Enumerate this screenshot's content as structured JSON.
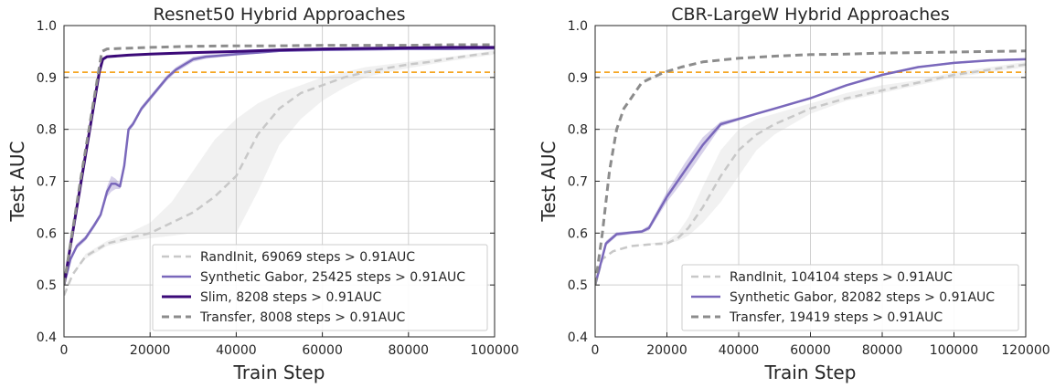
{
  "chart_data": [
    {
      "type": "line",
      "title": "Resnet50 Hybrid Approaches",
      "xlabel": "Train Step",
      "ylabel": "Test AUC",
      "xlim": [
        0,
        100000
      ],
      "ylim": [
        0.4,
        1.0
      ],
      "xticks": [
        0,
        20000,
        40000,
        60000,
        80000,
        100000
      ],
      "yticks": [
        0.4,
        0.5,
        0.6,
        0.7,
        0.8,
        0.9,
        1.0
      ],
      "grid": true,
      "legend_position": "lower-right",
      "threshold": {
        "value": 0.91,
        "color": "#f5a623"
      },
      "series": [
        {
          "name": "RandInit, 69069 steps > 0.91AUC",
          "color": "#c8c8c8",
          "dash": "dashed",
          "width": 2.5,
          "x": [
            0,
            2000,
            5000,
            10000,
            15000,
            20000,
            25000,
            30000,
            35000,
            40000,
            45000,
            50000,
            55000,
            60000,
            65000,
            70000,
            75000,
            80000,
            85000,
            90000,
            95000,
            100000
          ],
          "y": [
            0.48,
            0.52,
            0.555,
            0.58,
            0.59,
            0.6,
            0.62,
            0.64,
            0.67,
            0.71,
            0.79,
            0.84,
            0.87,
            0.885,
            0.9,
            0.91,
            0.918,
            0.925,
            0.93,
            0.937,
            0.943,
            0.948
          ],
          "band_low": [
            0.48,
            0.52,
            0.55,
            0.575,
            0.585,
            0.59,
            0.595,
            0.6,
            0.6,
            0.6,
            0.68,
            0.77,
            0.82,
            0.855,
            0.88,
            0.9,
            0.91,
            0.918,
            0.925,
            0.932,
            0.938,
            0.944
          ],
          "band_high": [
            0.48,
            0.52,
            0.56,
            0.585,
            0.6,
            0.62,
            0.66,
            0.72,
            0.78,
            0.82,
            0.85,
            0.87,
            0.885,
            0.9,
            0.91,
            0.92,
            0.925,
            0.93,
            0.935,
            0.94,
            0.946,
            0.952
          ]
        },
        {
          "name": "Synthetic Gabor, 25425 steps > 0.91AUC",
          "color": "#7a68bb",
          "dash": "solid",
          "width": 2.5,
          "x": [
            0,
            1500,
            3000,
            5000,
            7000,
            8500,
            10000,
            11000,
            12000,
            13000,
            14000,
            15000,
            16000,
            18000,
            20000,
            22000,
            24000,
            26000,
            28000,
            30000,
            33000,
            36000,
            40000,
            45000,
            50000,
            60000,
            70000,
            80000,
            90000,
            100000
          ],
          "y": [
            0.5,
            0.55,
            0.575,
            0.59,
            0.615,
            0.635,
            0.68,
            0.695,
            0.695,
            0.69,
            0.73,
            0.8,
            0.81,
            0.84,
            0.86,
            0.88,
            0.9,
            0.915,
            0.925,
            0.935,
            0.94,
            0.942,
            0.945,
            0.948,
            0.951,
            0.953,
            0.954,
            0.955,
            0.955,
            0.956
          ],
          "band_low": [
            0.5,
            0.545,
            0.57,
            0.585,
            0.61,
            0.63,
            0.67,
            0.68,
            0.685,
            0.685,
            0.725,
            0.795,
            0.805,
            0.835,
            0.855,
            0.875,
            0.895,
            0.91,
            0.92,
            0.93,
            0.936,
            0.939,
            0.942,
            0.946,
            0.949,
            0.951,
            0.952,
            0.953,
            0.953,
            0.954
          ],
          "band_high": [
            0.5,
            0.555,
            0.58,
            0.595,
            0.62,
            0.64,
            0.69,
            0.71,
            0.705,
            0.695,
            0.735,
            0.805,
            0.815,
            0.845,
            0.865,
            0.885,
            0.905,
            0.92,
            0.93,
            0.94,
            0.944,
            0.945,
            0.948,
            0.95,
            0.953,
            0.955,
            0.956,
            0.957,
            0.957,
            0.958
          ]
        },
        {
          "name": "Slim, 8208 steps > 0.91AUC",
          "color": "#3b0a78",
          "dash": "solid",
          "width": 3,
          "x": [
            0,
            4000,
            8200,
            9000,
            10000,
            15000,
            20000,
            30000,
            40000,
            50000,
            60000,
            70000,
            80000,
            90000,
            100000
          ],
          "y": [
            0.5,
            0.7,
            0.91,
            0.935,
            0.94,
            0.943,
            0.945,
            0.948,
            0.95,
            0.953,
            0.955,
            0.956,
            0.957,
            0.958,
            0.958
          ]
        },
        {
          "name": "Transfer, 8008 steps > 0.91AUC",
          "color": "#8c8c8c",
          "dash": "dashed",
          "width": 3,
          "x": [
            0,
            4000,
            8000,
            8800,
            10000,
            20000,
            30000,
            40000,
            50000,
            60000,
            70000,
            80000,
            90000,
            100000
          ],
          "y": [
            0.5,
            0.71,
            0.91,
            0.95,
            0.955,
            0.958,
            0.96,
            0.961,
            0.961,
            0.962,
            0.962,
            0.962,
            0.963,
            0.963
          ]
        }
      ]
    },
    {
      "type": "line",
      "title": "CBR-LargeW Hybrid Approaches",
      "xlabel": "Train Step",
      "ylabel": "Test AUC",
      "xlim": [
        0,
        120000
      ],
      "ylim": [
        0.4,
        1.0
      ],
      "xticks": [
        0,
        20000,
        40000,
        60000,
        80000,
        100000,
        120000
      ],
      "yticks": [
        0.4,
        0.5,
        0.6,
        0.7,
        0.8,
        0.9,
        1.0
      ],
      "grid": true,
      "legend_position": "lower-right",
      "threshold": {
        "value": 0.91,
        "color": "#f5a623"
      },
      "series": [
        {
          "name": "RandInit, 104104 steps > 0.91AUC",
          "color": "#c8c8c8",
          "dash": "dashed",
          "width": 2.5,
          "x": [
            0,
            2000,
            5000,
            10000,
            15000,
            20000,
            23000,
            26000,
            30000,
            35000,
            40000,
            45000,
            50000,
            60000,
            70000,
            80000,
            90000,
            100000,
            110000,
            120000
          ],
          "y": [
            0.5,
            0.55,
            0.565,
            0.575,
            0.578,
            0.58,
            0.59,
            0.61,
            0.65,
            0.71,
            0.76,
            0.79,
            0.81,
            0.84,
            0.86,
            0.875,
            0.89,
            0.905,
            0.915,
            0.925
          ],
          "band_low": [
            0.5,
            0.55,
            0.565,
            0.575,
            0.578,
            0.58,
            0.585,
            0.595,
            0.62,
            0.66,
            0.71,
            0.76,
            0.79,
            0.83,
            0.855,
            0.87,
            0.885,
            0.9,
            0.91,
            0.92
          ],
          "band_high": [
            0.5,
            0.55,
            0.565,
            0.575,
            0.58,
            0.585,
            0.6,
            0.63,
            0.69,
            0.76,
            0.8,
            0.82,
            0.83,
            0.85,
            0.87,
            0.885,
            0.895,
            0.91,
            0.92,
            0.93
          ]
        },
        {
          "name": "Synthetic Gabor, 82082 steps > 0.91AUC",
          "color": "#7a68bb",
          "dash": "solid",
          "width": 2.5,
          "x": [
            0,
            3000,
            6000,
            10000,
            13000,
            15000,
            20000,
            25000,
            30000,
            35000,
            40000,
            45000,
            50000,
            60000,
            70000,
            80000,
            90000,
            100000,
            110000,
            120000
          ],
          "y": [
            0.5,
            0.58,
            0.598,
            0.601,
            0.603,
            0.61,
            0.67,
            0.72,
            0.77,
            0.81,
            0.82,
            0.83,
            0.84,
            0.86,
            0.885,
            0.905,
            0.92,
            0.928,
            0.933,
            0.935
          ],
          "band_low": [
            0.5,
            0.575,
            0.594,
            0.598,
            0.6,
            0.605,
            0.66,
            0.705,
            0.755,
            0.805,
            0.817,
            0.828,
            0.838,
            0.858,
            0.883,
            0.903,
            0.918,
            0.926,
            0.931,
            0.933
          ],
          "band_high": [
            0.5,
            0.585,
            0.602,
            0.604,
            0.606,
            0.615,
            0.68,
            0.735,
            0.785,
            0.815,
            0.823,
            0.832,
            0.842,
            0.862,
            0.887,
            0.907,
            0.922,
            0.93,
            0.935,
            0.937
          ]
        },
        {
          "name": "Transfer, 19419 steps > 0.91AUC",
          "color": "#8c8c8c",
          "dash": "dashed",
          "width": 3,
          "x": [
            0,
            2000,
            4000,
            6000,
            8000,
            10000,
            13000,
            16000,
            19400,
            24000,
            30000,
            40000,
            50000,
            60000,
            70000,
            80000,
            90000,
            100000,
            110000,
            120000
          ],
          "y": [
            0.5,
            0.6,
            0.72,
            0.8,
            0.84,
            0.86,
            0.89,
            0.9,
            0.91,
            0.92,
            0.93,
            0.937,
            0.941,
            0.944,
            0.945,
            0.947,
            0.948,
            0.949,
            0.95,
            0.951
          ]
        }
      ]
    }
  ]
}
